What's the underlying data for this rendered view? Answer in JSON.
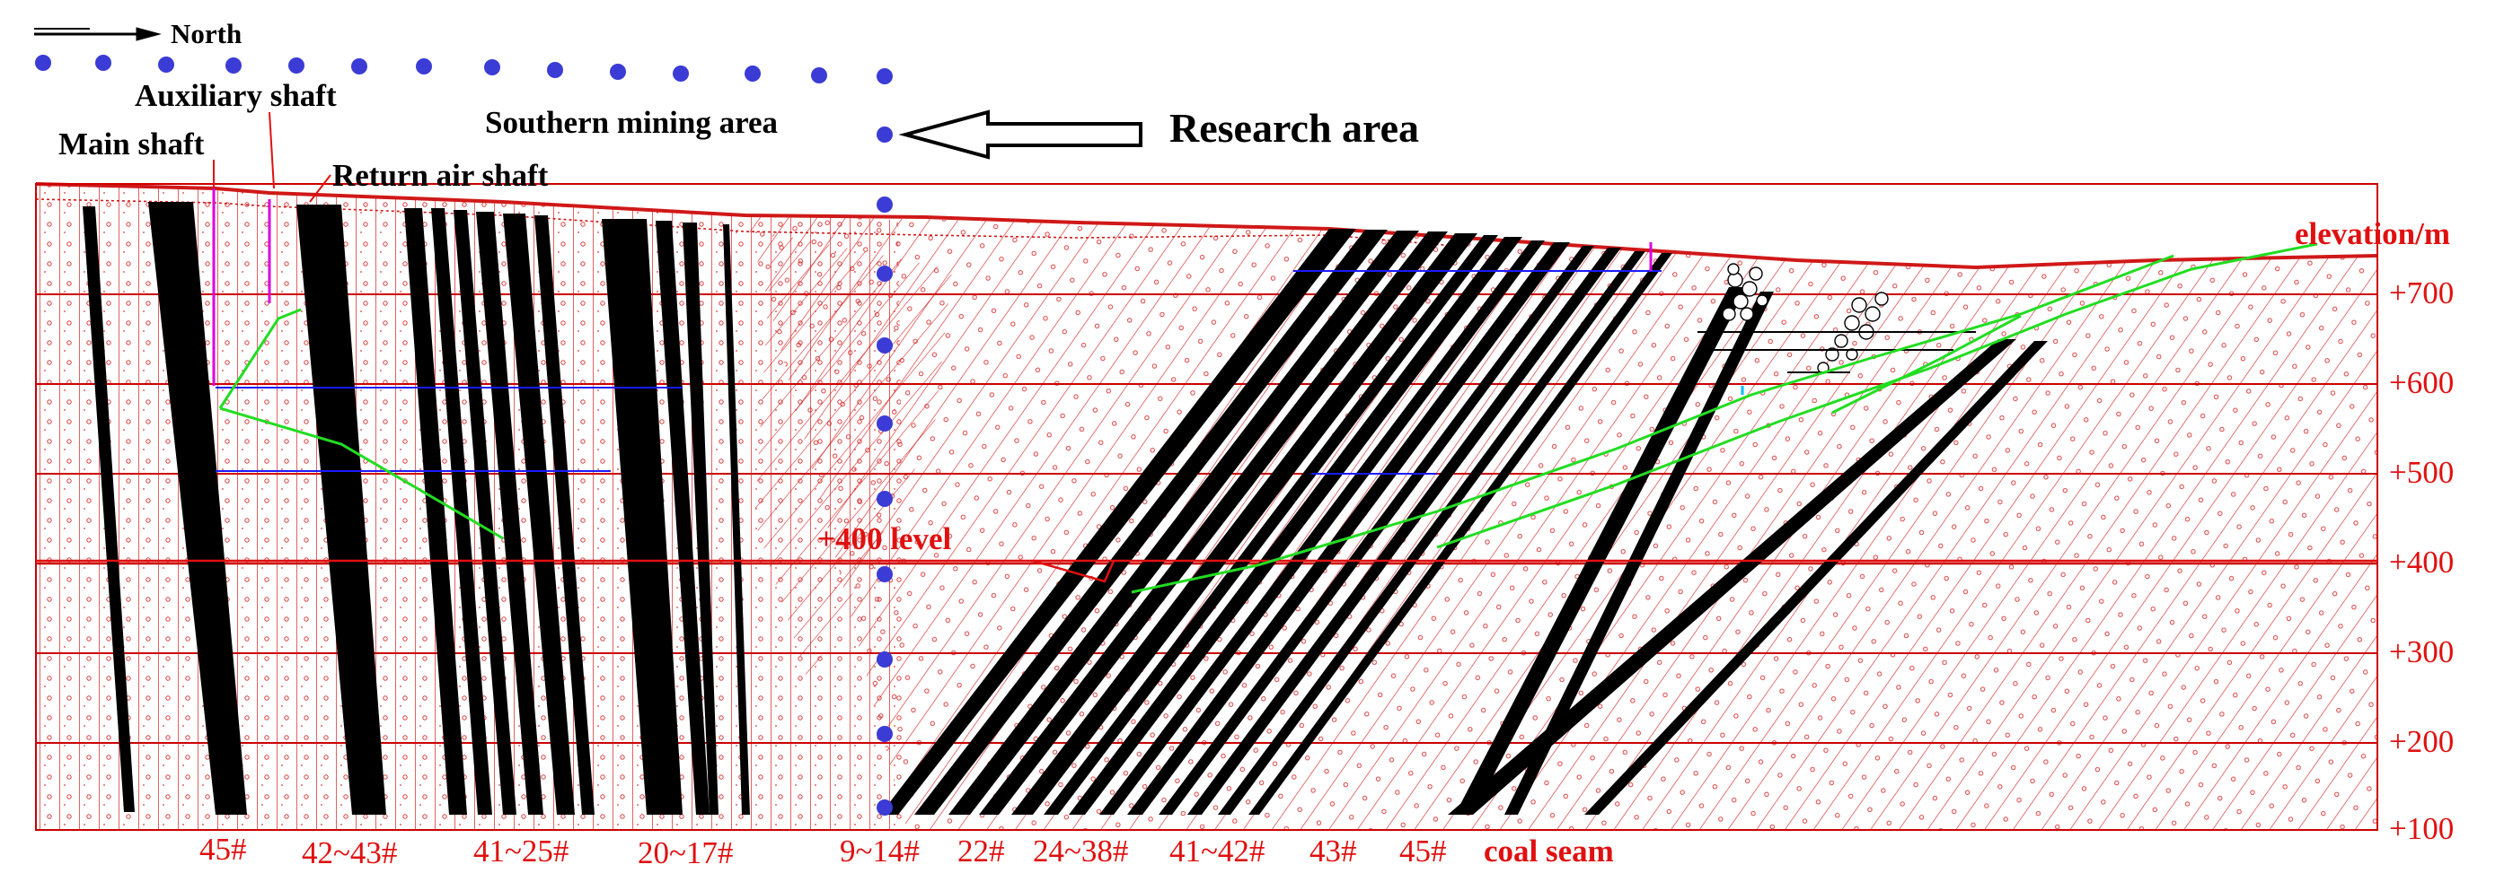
{
  "north_label": "North",
  "shaft_labels": {
    "main": "Main shaft",
    "auxiliary": "Auxiliary shaft",
    "return_air": "Return air shaft"
  },
  "southern_mining_area": "Southern mining area",
  "research_area": "Research area",
  "level_label": "+400 level",
  "axis_title": "elevation/m",
  "elevation_ticks": [
    "+700",
    "+600",
    "+500",
    "+400",
    "+300",
    "+200",
    "+100"
  ],
  "coal_seams": [
    "45#",
    "42~43#",
    "41~25#",
    "20~17#",
    "9~14#",
    "22#",
    "24~38#",
    "41~42#",
    "43#",
    "45#"
  ],
  "coal_seam_caption": "coal seam",
  "colors": {
    "section_line": "#cc0000",
    "seam": "#000000",
    "marker_dots": "#3b3bd6",
    "goaf_line": "#22dd22",
    "roadway": "#1a1aff"
  }
}
